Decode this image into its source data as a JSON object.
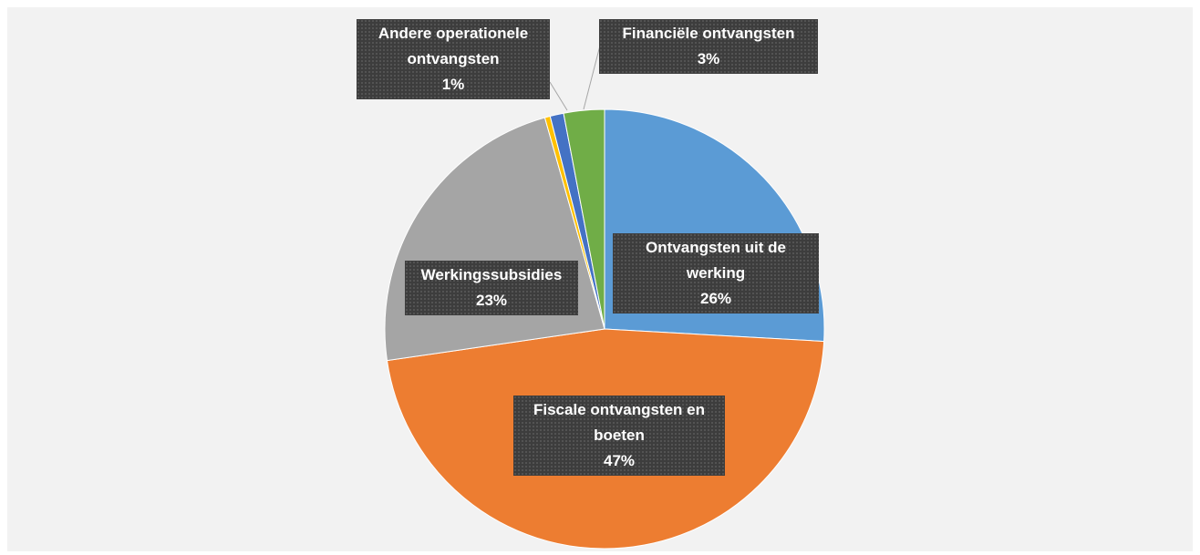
{
  "chart_data": {
    "type": "pie",
    "categories": [
      "Ontvangsten uit de werking",
      "Fiscale ontvangsten en boeten",
      "Werkingssubsidies",
      null,
      "Andere operationele ontvangsten",
      "Financiële ontvangsten"
    ],
    "values": [
      26,
      47,
      23,
      0.4,
      1,
      3
    ],
    "value_labels": [
      "26%",
      "47%",
      "23%",
      null,
      "1%",
      "3%"
    ],
    "colors": [
      "#5b9bd5",
      "#ed7d31",
      "#a5a5a5",
      "#ffc000",
      "#4472c4",
      "#70ad47"
    ]
  }
}
